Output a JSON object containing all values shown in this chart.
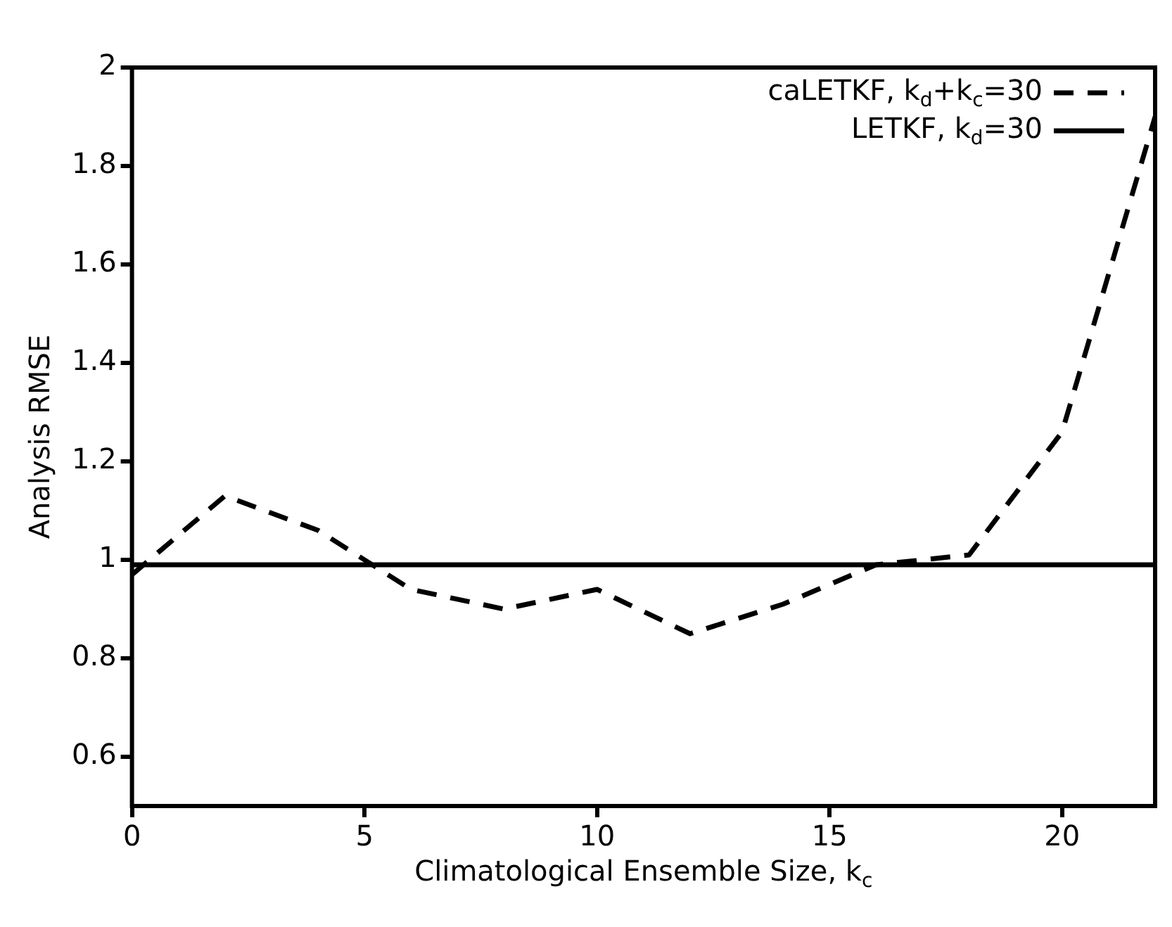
{
  "chart_data": {
    "type": "line",
    "xlabel": "Climatological Ensemble Size, k$_{c}$",
    "ylabel": "Analysis RMSE",
    "x": [
      0,
      2,
      4,
      6,
      8,
      10,
      12,
      14,
      16,
      18,
      20,
      22
    ],
    "series": [
      {
        "name": "caLETKF, k$_{d}$+k$_{c}$=30",
        "color": "#000000",
        "line_style": "dashed",
        "values": [
          0.97,
          1.13,
          1.06,
          0.94,
          0.9,
          0.94,
          0.85,
          0.91,
          0.99,
          1.01,
          1.26,
          1.9
        ]
      },
      {
        "name": "LETKF, k$_{d}$=30",
        "color": "#000000",
        "line_style": "solid",
        "x": [
          0,
          22
        ],
        "values": [
          0.99,
          0.99
        ]
      }
    ],
    "xlim": [
      0,
      22
    ],
    "xticks": [
      0,
      5,
      10,
      15,
      20
    ],
    "ylim": [
      0.5,
      2
    ],
    "yticks": [
      0.6,
      0.8,
      1,
      1.2,
      1.4,
      1.6,
      1.8,
      2
    ],
    "legend": "top right",
    "grid": false,
    "marker": "none"
  }
}
